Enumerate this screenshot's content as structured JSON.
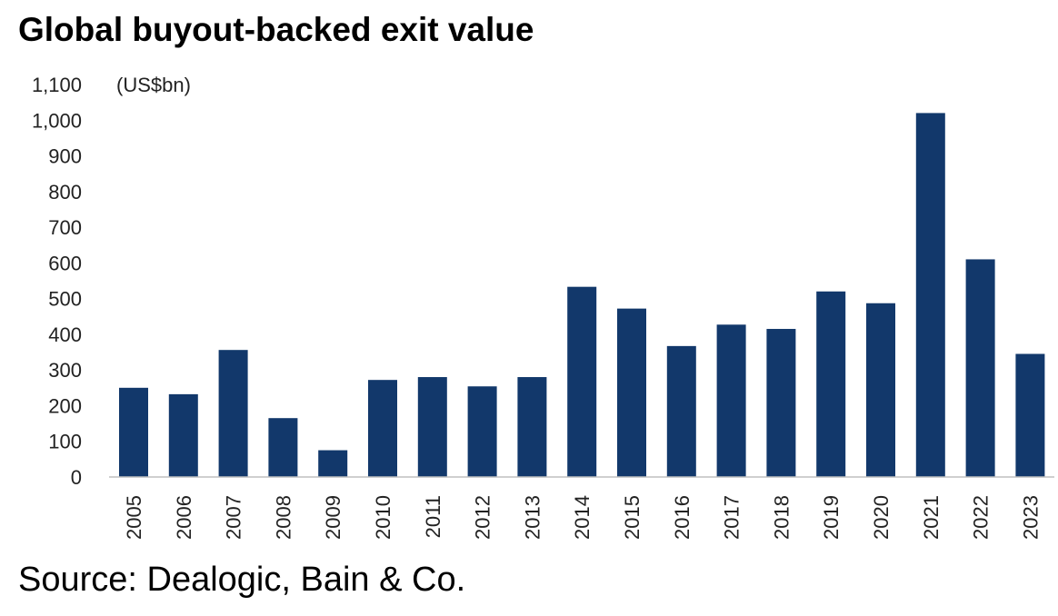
{
  "title": "Global buyout-backed exit value",
  "source": "Source: Dealogic, Bain & Co.",
  "chart_data": {
    "type": "bar",
    "title": "Global buyout-backed exit value",
    "unit_label": "(US$bn)",
    "xlabel": "",
    "ylabel": "",
    "ylim": [
      0,
      1100
    ],
    "yticks": [
      0,
      100,
      200,
      300,
      400,
      500,
      600,
      700,
      800,
      900,
      1000,
      1100
    ],
    "ytick_labels": [
      "0",
      "100",
      "200",
      "300",
      "400",
      "500",
      "600",
      "700",
      "800",
      "900",
      "1,000",
      "1,100"
    ],
    "categories": [
      "2005",
      "2006",
      "2007",
      "2008",
      "2009",
      "2010",
      "2011",
      "2012",
      "2013",
      "2014",
      "2015",
      "2016",
      "2017",
      "2018",
      "2019",
      "2020",
      "2021",
      "2022",
      "2023"
    ],
    "values": [
      250,
      232,
      356,
      165,
      75,
      272,
      280,
      254,
      280,
      533,
      472,
      367,
      427,
      415,
      520,
      487,
      1020,
      610,
      345
    ],
    "bar_color": "#12386b",
    "grid": false
  }
}
